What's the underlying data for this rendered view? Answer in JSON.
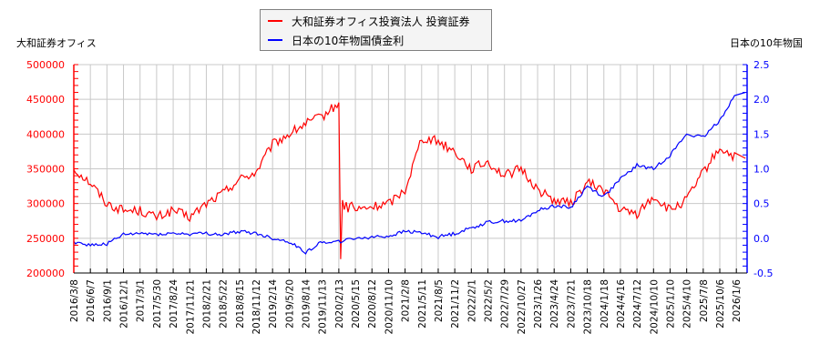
{
  "legend": {
    "items": [
      {
        "label": "大和証券オフィス投資法人 投資証券",
        "color": "#ff0000"
      },
      {
        "label": "日本の10年物国債金利",
        "color": "#0000ff"
      }
    ]
  },
  "axes": {
    "left_title": "大和証券オフィス",
    "right_title": "日本の10年物国",
    "left_ticks": [
      "500000",
      "450000",
      "400000",
      "350000",
      "300000",
      "250000",
      "200000"
    ],
    "right_ticks": [
      "2.5",
      "2.0",
      "1.5",
      "1.0",
      "0.5",
      "0.0",
      "-0.5"
    ],
    "left_color": "#ff0000",
    "right_color": "#0000ff"
  },
  "chart_data": {
    "type": "line",
    "title": "",
    "xlabel": "",
    "ylabel_left": "大和証券オフィス",
    "ylabel_right": "日本の10年物国",
    "ylim_left": [
      200000,
      500000
    ],
    "ylim_right": [
      -0.5,
      2.5
    ],
    "grid": true,
    "legend_position": "top-center",
    "x": [
      "2016/3/8",
      "2016/6/7",
      "2016/9/1",
      "2016/12/1",
      "2017/3/1",
      "2017/5/30",
      "2017/8/24",
      "2017/11/21",
      "2018/2/21",
      "2018/5/22",
      "2018/8/15",
      "2018/11/12",
      "2019/2/14",
      "2019/5/20",
      "2019/8/14",
      "2019/11/13",
      "2020/2/13",
      "2020/5/15",
      "2020/8/12",
      "2020/11/10",
      "2021/2/8",
      "2021/5/11",
      "2021/8/5",
      "2021/11/2",
      "2022/2/1",
      "2022/5/2",
      "2022/7/29",
      "2022/10/27",
      "2023/1/26",
      "2023/4/24",
      "2023/7/21",
      "2023/10/18",
      "2024/1/18",
      "2024/4/16",
      "2024/7/12",
      "2024/10/10",
      "2025/1/10",
      "2025/4/10",
      "2025/7/8",
      "2025/10/6",
      "2026/1/6"
    ],
    "series": [
      {
        "name": "大和証券オフィス投資法人 投資証券",
        "axis": "left",
        "color": "#ff0000",
        "values": [
          350000,
          330000,
          300000,
          290000,
          290000,
          280000,
          290000,
          280000,
          300000,
          315000,
          335000,
          345000,
          385000,
          400000,
          415000,
          425000,
          445000,
          290000,
          295000,
          300000,
          320000,
          395000,
          390000,
          375000,
          350000,
          360000,
          340000,
          350000,
          320000,
          305000,
          300000,
          330000,
          320000,
          290000,
          285000,
          310000,
          290000,
          305000,
          345000,
          380000,
          365000
        ]
      },
      {
        "name": "日本の10年物国債金利",
        "axis": "right",
        "color": "#0000ff",
        "values": [
          -0.05,
          -0.1,
          -0.08,
          0.05,
          0.07,
          0.06,
          0.07,
          0.06,
          0.07,
          0.05,
          0.1,
          0.07,
          0.0,
          -0.05,
          -0.2,
          -0.05,
          -0.05,
          0.0,
          0.02,
          0.03,
          0.1,
          0.08,
          0.02,
          0.07,
          0.15,
          0.23,
          0.25,
          0.25,
          0.4,
          0.47,
          0.44,
          0.75,
          0.6,
          0.85,
          1.05,
          1.0,
          1.2,
          1.5,
          1.45,
          1.7,
          2.1
        ]
      }
    ]
  }
}
